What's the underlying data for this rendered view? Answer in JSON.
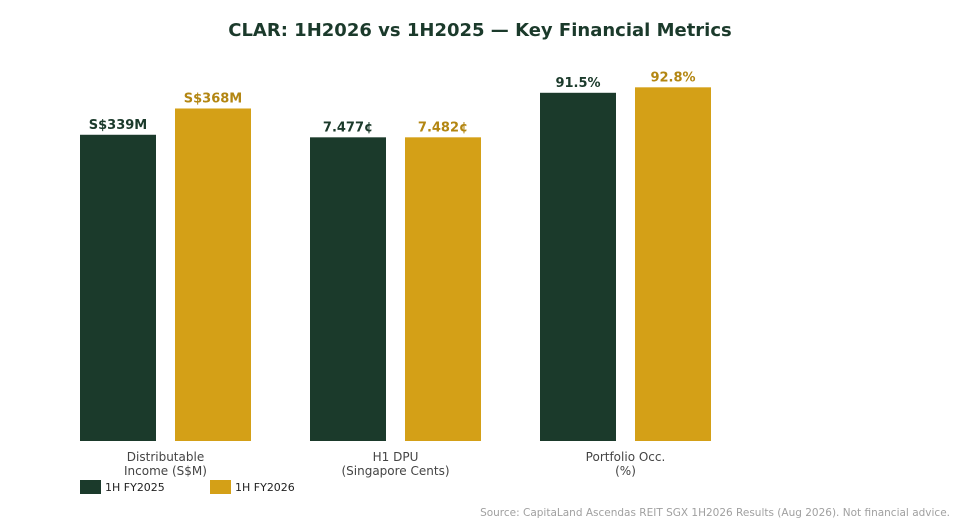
{
  "chart_data": {
    "type": "bar",
    "title": "CLAR: 1H2026 vs 1H2025 — Key Financial Metrics",
    "xlabel": "",
    "ylabel": "",
    "grid": false,
    "legend_position": "bottom-left",
    "categories": [
      [
        "Distributable",
        "Income (S$M)"
      ],
      [
        "H1 DPU",
        "(Singapore Cents)"
      ],
      [
        "Portfolio Occ.",
        "(%)"
      ]
    ],
    "series": [
      {
        "name": "1H FY2025",
        "color": "#1b3a2b",
        "label_color": "#1b3a2b",
        "value_labels": [
          "S$339M",
          "7.477¢",
          "91.5%"
        ],
        "relative_heights": [
          0.839,
          0.832,
          0.954
        ]
      },
      {
        "name": "1H FY2026",
        "color": "#d4a017",
        "label_color": "#b38612",
        "value_labels": [
          "S$368M",
          "7.482¢",
          "92.8%"
        ],
        "relative_heights": [
          0.911,
          0.832,
          0.969
        ]
      }
    ],
    "source": "Source: CapitaLand Ascendas REIT SGX 1H2026 Results (Aug 2026). Not financial advice."
  },
  "colors": {
    "title": "#1b3a2b",
    "background": "#ffffff"
  }
}
